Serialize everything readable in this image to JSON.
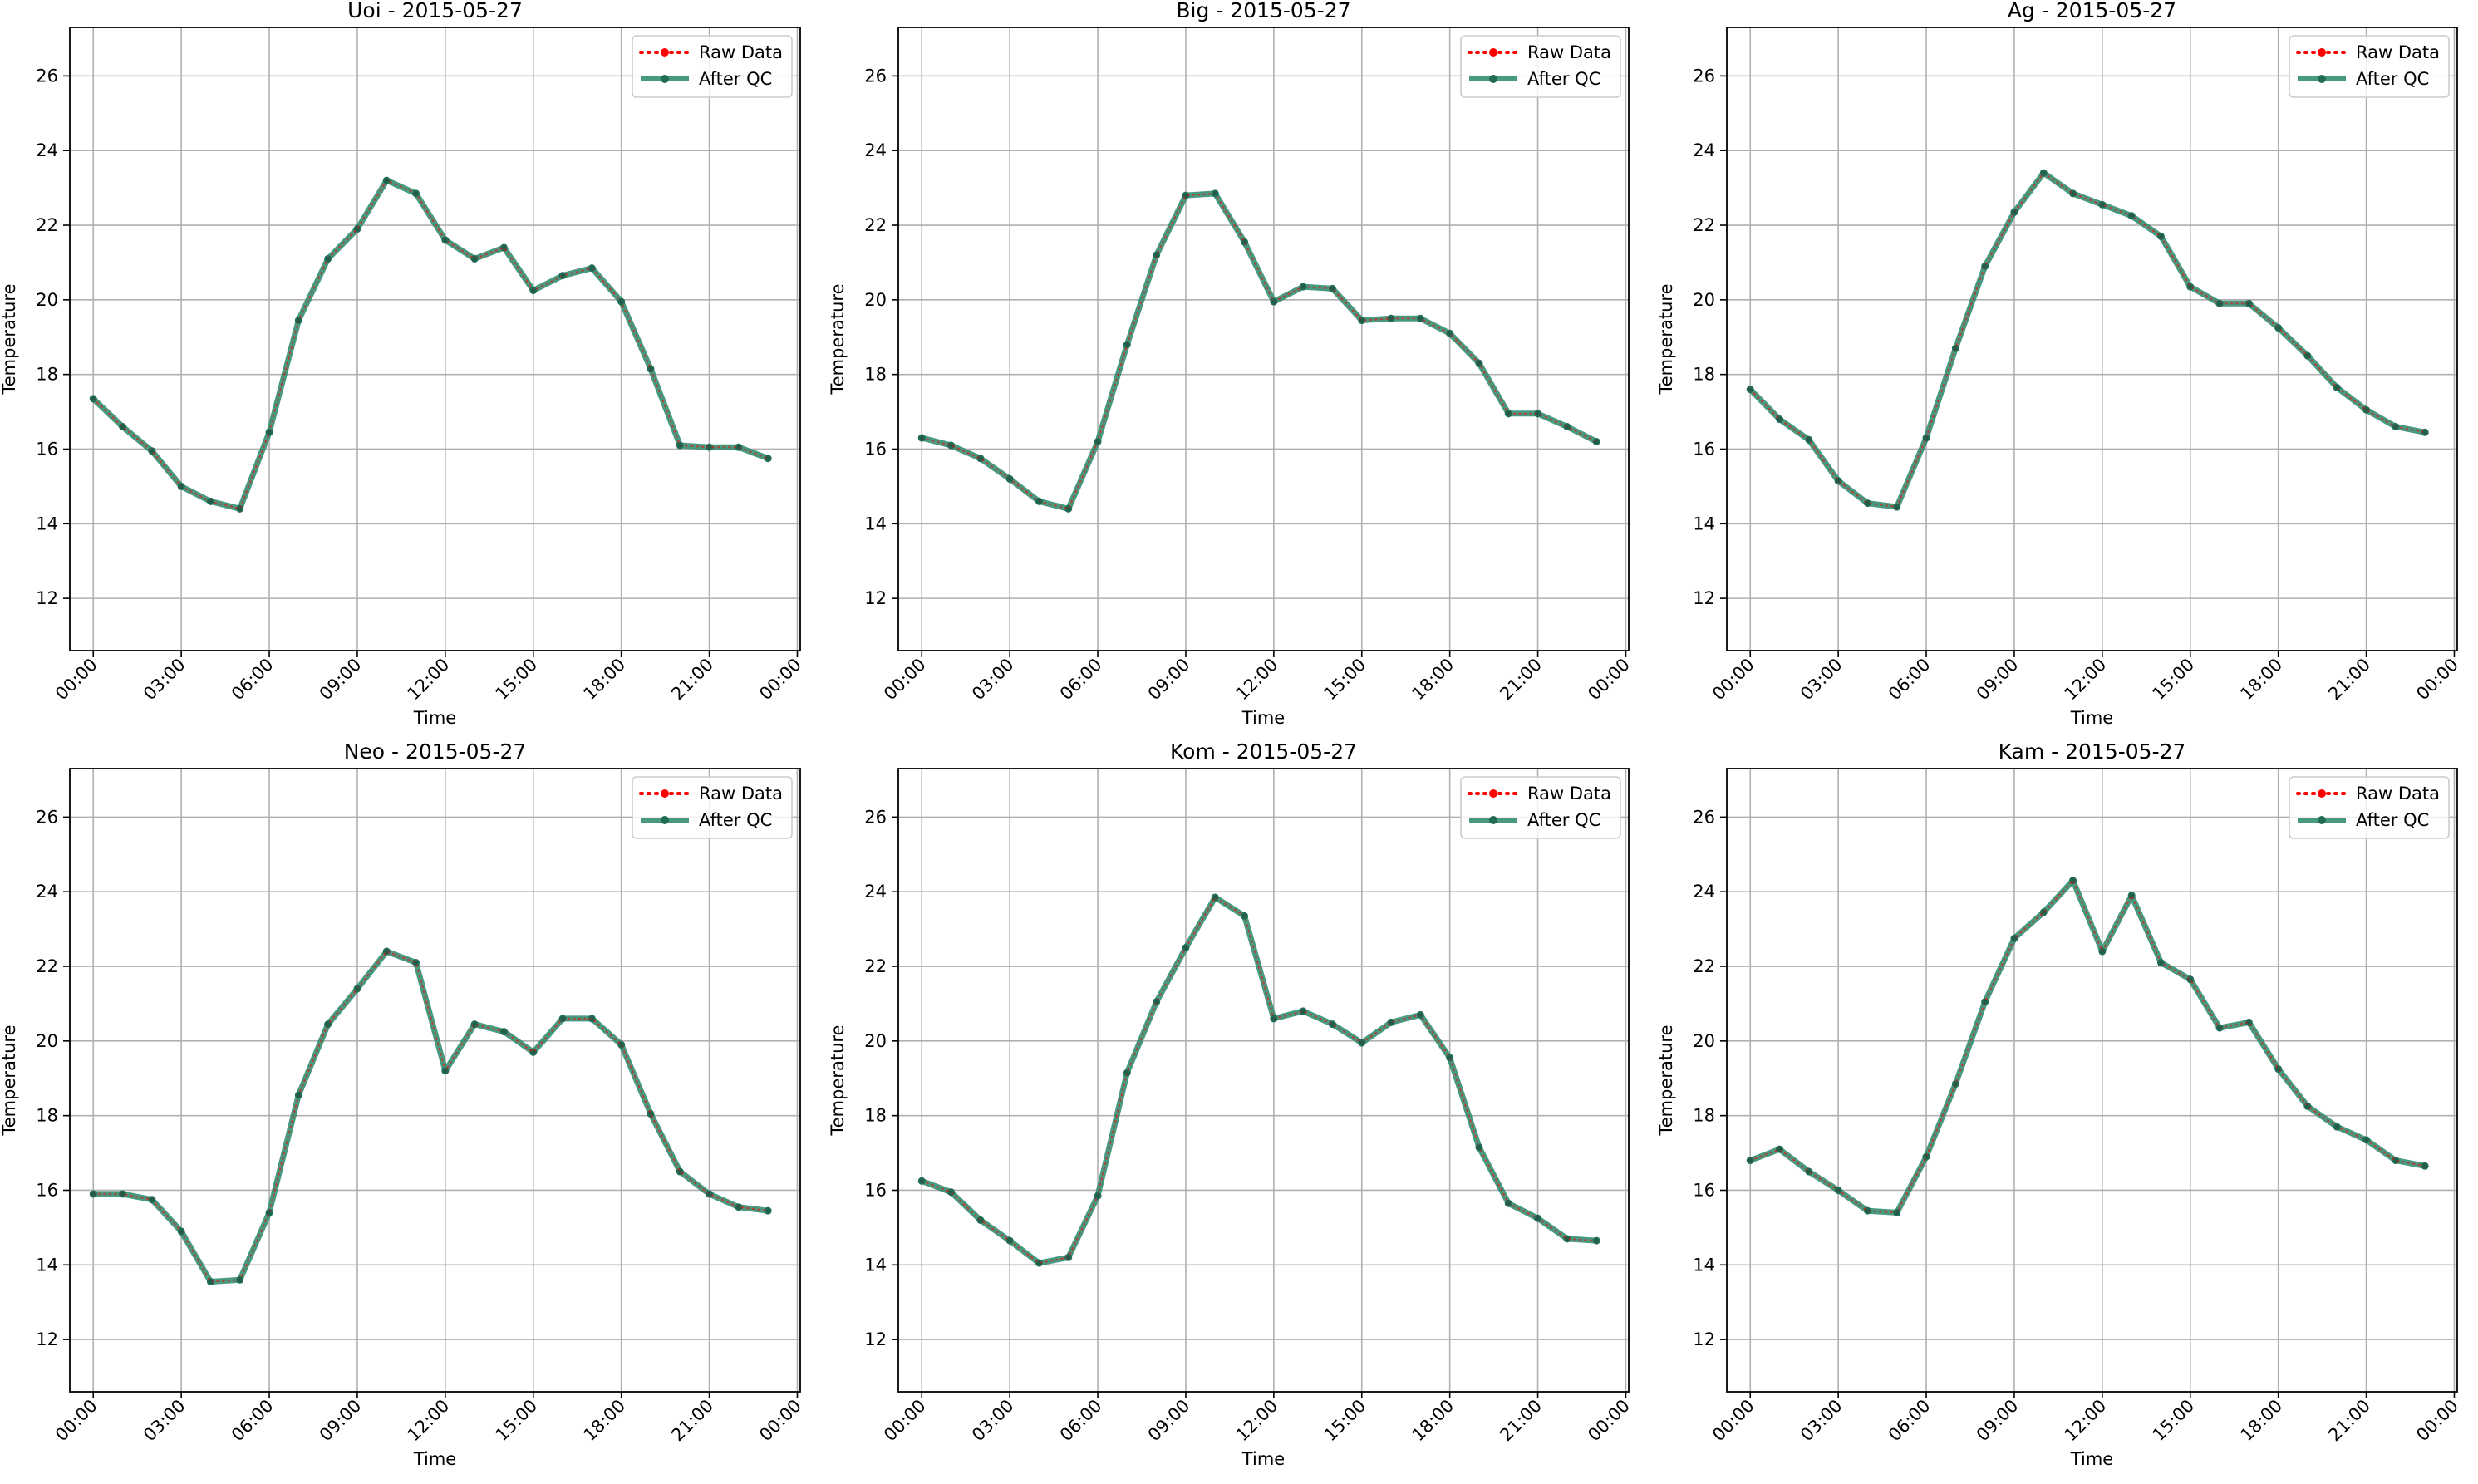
{
  "colors": {
    "raw": "#ff0000",
    "qc": "#2e8b6e",
    "qc_marker": "#226b55",
    "grid": "#b0b0b0",
    "axes": "#000000"
  },
  "chart_data": [
    {
      "type": "line",
      "title": "Uoi - 2015-05-27",
      "xlabel": "Time",
      "ylabel": "Temperature",
      "ylim": [
        10.6,
        27.3
      ],
      "xlim": [
        -0.8,
        24.1
      ],
      "x_ticks": [
        "00:00",
        "03:00",
        "06:00",
        "09:00",
        "12:00",
        "15:00",
        "18:00",
        "21:00",
        "00:00"
      ],
      "y_ticks": [
        "12",
        "14",
        "16",
        "18",
        "20",
        "22",
        "24",
        "26"
      ],
      "grid": true,
      "legend_position": "top-right",
      "series": [
        {
          "name": "Raw Data",
          "style": "dotted",
          "values": [
            17.35,
            16.6,
            15.95,
            15.0,
            14.6,
            14.4,
            16.45,
            19.45,
            21.1,
            21.9,
            23.2,
            22.85,
            21.6,
            21.1,
            21.4,
            20.25,
            20.65,
            20.85,
            19.95,
            18.15,
            16.1,
            16.05,
            16.05,
            15.75
          ]
        },
        {
          "name": "After QC",
          "style": "solid",
          "values": [
            17.35,
            16.6,
            15.95,
            15.0,
            14.6,
            14.4,
            16.45,
            19.45,
            21.1,
            21.9,
            23.2,
            22.85,
            21.6,
            21.1,
            21.4,
            20.25,
            20.65,
            20.85,
            19.95,
            18.15,
            16.1,
            16.05,
            16.05,
            15.75
          ]
        }
      ]
    },
    {
      "type": "line",
      "title": "Big - 2015-05-27",
      "xlabel": "Time",
      "ylabel": "Temperature",
      "ylim": [
        10.6,
        27.3
      ],
      "xlim": [
        -0.8,
        24.1
      ],
      "x_ticks": [
        "00:00",
        "03:00",
        "06:00",
        "09:00",
        "12:00",
        "15:00",
        "18:00",
        "21:00",
        "00:00"
      ],
      "y_ticks": [
        "12",
        "14",
        "16",
        "18",
        "20",
        "22",
        "24",
        "26"
      ],
      "grid": true,
      "legend_position": "top-right",
      "series": [
        {
          "name": "Raw Data",
          "style": "dotted",
          "values": [
            16.3,
            16.1,
            15.75,
            15.2,
            14.6,
            14.4,
            16.2,
            18.8,
            21.2,
            22.8,
            22.85,
            21.55,
            19.95,
            20.35,
            20.3,
            19.45,
            19.5,
            19.5,
            19.1,
            18.3,
            16.95,
            16.95,
            16.6,
            16.2
          ]
        },
        {
          "name": "After QC",
          "style": "solid",
          "values": [
            16.3,
            16.1,
            15.75,
            15.2,
            14.6,
            14.4,
            16.2,
            18.8,
            21.2,
            22.8,
            22.85,
            21.55,
            19.95,
            20.35,
            20.3,
            19.45,
            19.5,
            19.5,
            19.1,
            18.3,
            16.95,
            16.95,
            16.6,
            16.2
          ]
        }
      ]
    },
    {
      "type": "line",
      "title": "Ag - 2015-05-27",
      "xlabel": "Time",
      "ylabel": "Temperature",
      "ylim": [
        10.6,
        27.3
      ],
      "xlim": [
        -0.8,
        24.1
      ],
      "x_ticks": [
        "00:00",
        "03:00",
        "06:00",
        "09:00",
        "12:00",
        "15:00",
        "18:00",
        "21:00",
        "00:00"
      ],
      "y_ticks": [
        "12",
        "14",
        "16",
        "18",
        "20",
        "22",
        "24",
        "26"
      ],
      "grid": true,
      "legend_position": "top-right",
      "series": [
        {
          "name": "Raw Data",
          "style": "dotted",
          "values": [
            17.6,
            16.8,
            16.25,
            15.15,
            14.55,
            14.45,
            16.3,
            18.7,
            20.9,
            22.35,
            23.4,
            22.85,
            22.55,
            22.25,
            21.7,
            20.35,
            19.9,
            19.9,
            19.25,
            18.5,
            17.65,
            17.05,
            16.6,
            16.45
          ]
        },
        {
          "name": "After QC",
          "style": "solid",
          "values": [
            17.6,
            16.8,
            16.25,
            15.15,
            14.55,
            14.45,
            16.3,
            18.7,
            20.9,
            22.35,
            23.4,
            22.85,
            22.55,
            22.25,
            21.7,
            20.35,
            19.9,
            19.9,
            19.25,
            18.5,
            17.65,
            17.05,
            16.6,
            16.45
          ]
        }
      ]
    },
    {
      "type": "line",
      "title": "Neo - 2015-05-27",
      "xlabel": "Time",
      "ylabel": "Temperature",
      "ylim": [
        10.6,
        27.3
      ],
      "xlim": [
        -0.8,
        24.1
      ],
      "x_ticks": [
        "00:00",
        "03:00",
        "06:00",
        "09:00",
        "12:00",
        "15:00",
        "18:00",
        "21:00",
        "00:00"
      ],
      "y_ticks": [
        "12",
        "14",
        "16",
        "18",
        "20",
        "22",
        "24",
        "26"
      ],
      "grid": true,
      "legend_position": "top-right",
      "series": [
        {
          "name": "Raw Data",
          "style": "dotted",
          "values": [
            15.9,
            15.9,
            15.75,
            14.9,
            13.55,
            13.6,
            15.4,
            18.55,
            20.45,
            21.4,
            22.4,
            22.1,
            19.2,
            20.45,
            20.25,
            19.7,
            20.6,
            20.6,
            19.9,
            18.05,
            16.5,
            15.9,
            15.55,
            15.45
          ]
        },
        {
          "name": "After QC",
          "style": "solid",
          "values": [
            15.9,
            15.9,
            15.75,
            14.9,
            13.55,
            13.6,
            15.4,
            18.55,
            20.45,
            21.4,
            22.4,
            22.1,
            19.2,
            20.45,
            20.25,
            19.7,
            20.6,
            20.6,
            19.9,
            18.05,
            16.5,
            15.9,
            15.55,
            15.45
          ]
        }
      ]
    },
    {
      "type": "line",
      "title": "Kom - 2015-05-27",
      "xlabel": "Time",
      "ylabel": "Temperature",
      "ylim": [
        10.6,
        27.3
      ],
      "xlim": [
        -0.8,
        24.1
      ],
      "x_ticks": [
        "00:00",
        "03:00",
        "06:00",
        "09:00",
        "12:00",
        "15:00",
        "18:00",
        "21:00",
        "00:00"
      ],
      "y_ticks": [
        "12",
        "14",
        "16",
        "18",
        "20",
        "22",
        "24",
        "26"
      ],
      "grid": true,
      "legend_position": "top-right",
      "series": [
        {
          "name": "Raw Data",
          "style": "dotted",
          "values": [
            16.25,
            15.95,
            15.2,
            14.65,
            14.05,
            14.2,
            15.85,
            19.15,
            21.05,
            22.5,
            23.85,
            23.35,
            20.6,
            20.8,
            20.45,
            19.95,
            20.5,
            20.7,
            19.55,
            17.15,
            15.65,
            15.25,
            14.7,
            14.65
          ]
        },
        {
          "name": "After QC",
          "style": "solid",
          "values": [
            16.25,
            15.95,
            15.2,
            14.65,
            14.05,
            14.2,
            15.85,
            19.15,
            21.05,
            22.5,
            23.85,
            23.35,
            20.6,
            20.8,
            20.45,
            19.95,
            20.5,
            20.7,
            19.55,
            17.15,
            15.65,
            15.25,
            14.7,
            14.65
          ]
        }
      ]
    },
    {
      "type": "line",
      "title": "Kam - 2015-05-27",
      "xlabel": "Time",
      "ylabel": "Temperature",
      "ylim": [
        10.6,
        27.3
      ],
      "xlim": [
        -0.8,
        24.1
      ],
      "x_ticks": [
        "00:00",
        "03:00",
        "06:00",
        "09:00",
        "12:00",
        "15:00",
        "18:00",
        "21:00",
        "00:00"
      ],
      "y_ticks": [
        "12",
        "14",
        "16",
        "18",
        "20",
        "22",
        "24",
        "26"
      ],
      "grid": true,
      "legend_position": "top-right",
      "series": [
        {
          "name": "Raw Data",
          "style": "dotted",
          "values": [
            16.8,
            17.1,
            16.5,
            16.0,
            15.45,
            15.4,
            16.9,
            18.85,
            21.05,
            22.75,
            23.45,
            24.3,
            22.4,
            23.9,
            22.1,
            21.65,
            20.35,
            20.5,
            19.25,
            18.25,
            17.7,
            17.35,
            16.8,
            16.65
          ]
        },
        {
          "name": "After QC",
          "style": "solid",
          "values": [
            16.8,
            17.1,
            16.5,
            16.0,
            15.45,
            15.4,
            16.9,
            18.85,
            21.05,
            22.75,
            23.45,
            24.3,
            22.4,
            23.9,
            22.1,
            21.65,
            20.35,
            20.5,
            19.25,
            18.25,
            17.7,
            17.35,
            16.8,
            16.65
          ]
        }
      ]
    }
  ]
}
